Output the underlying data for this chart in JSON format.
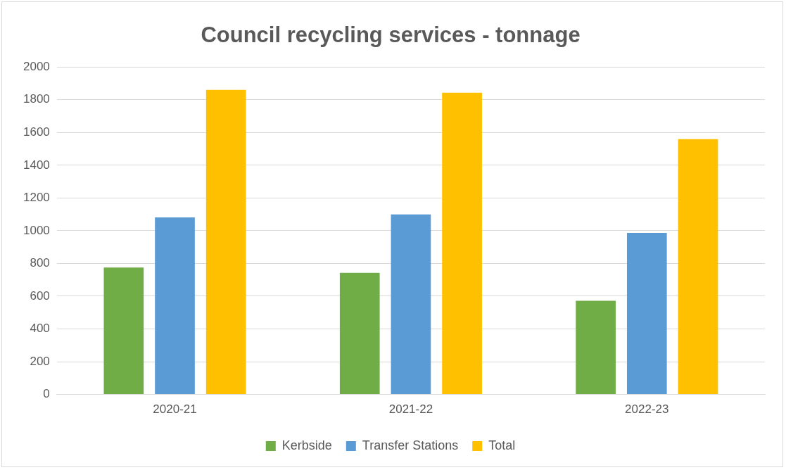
{
  "chart_data": {
    "type": "bar",
    "title": "Council recycling services - tonnage",
    "categories": [
      "2020-21",
      "2021-22",
      "2022-23"
    ],
    "series": [
      {
        "name": "Kerbside",
        "color": "#70ad47",
        "values": [
          775,
          743,
          572
        ]
      },
      {
        "name": "Transfer Stations",
        "color": "#5b9bd5",
        "values": [
          1081,
          1099,
          987
        ]
      },
      {
        "name": "Total",
        "color": "#ffc000",
        "values": [
          1860,
          1843,
          1559
        ]
      }
    ],
    "ylim": [
      0,
      2000
    ],
    "yticks": [
      0,
      200,
      400,
      600,
      800,
      1000,
      1200,
      1400,
      1600,
      1800,
      2000
    ],
    "grid": "y",
    "legend": "bottom"
  }
}
